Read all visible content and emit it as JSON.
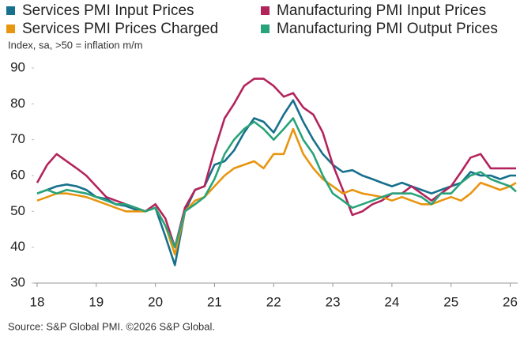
{
  "chart_data": {
    "type": "line",
    "subtitle": "Index, sa, >50 = inflation m/m",
    "source": "Source: S&P Global PMI. ©2026 S&P Global.",
    "x": [
      18,
      18.17,
      18.33,
      18.5,
      18.67,
      18.83,
      19,
      19.17,
      19.33,
      19.5,
      19.67,
      19.83,
      20,
      20.17,
      20.33,
      20.5,
      20.67,
      20.83,
      21,
      21.17,
      21.33,
      21.5,
      21.67,
      21.83,
      22,
      22.17,
      22.33,
      22.5,
      22.67,
      22.83,
      23,
      23.17,
      23.33,
      23.5,
      23.67,
      23.83,
      24,
      24.17,
      24.33,
      24.5,
      24.67,
      24.83,
      25,
      25.17,
      25.33,
      25.5,
      25.67,
      25.83,
      26,
      26.1
    ],
    "series": [
      {
        "name": "Services PMI Input Prices",
        "color": "#17708c",
        "values": [
          55,
          56,
          57,
          57.5,
          57,
          56,
          54,
          53.5,
          52,
          51.5,
          50.5,
          50,
          51,
          43,
          35,
          50,
          56,
          57,
          63,
          64,
          67,
          72,
          76,
          75,
          72,
          77,
          81,
          75,
          70,
          66,
          63,
          61,
          61.5,
          60,
          59,
          58,
          57,
          58,
          57,
          56,
          55,
          56,
          57,
          58,
          61,
          60,
          60,
          59,
          60,
          60
        ]
      },
      {
        "name": "Manufacturing PMI Input Prices",
        "color": "#b3245c",
        "values": [
          58,
          63,
          66,
          64,
          62,
          60,
          57,
          54,
          53,
          52,
          51,
          50,
          52,
          48,
          40,
          51,
          56,
          57,
          67,
          76,
          80,
          85,
          87,
          87,
          85,
          82,
          83,
          79,
          77,
          72,
          63,
          56,
          49,
          50,
          52,
          53,
          55,
          55,
          57,
          55,
          53,
          55,
          57,
          61,
          65,
          66,
          62,
          62,
          62,
          62
        ]
      },
      {
        "name": "Services PMI Prices Charged",
        "color": "#e8950f",
        "values": [
          53,
          54,
          55,
          55,
          54.5,
          54,
          53,
          52,
          51,
          50,
          50,
          50,
          51,
          46,
          38,
          50,
          53,
          54,
          57,
          60,
          62,
          63,
          64,
          62,
          66,
          66,
          73,
          66,
          62,
          59,
          57,
          55,
          56,
          55,
          54.5,
          54,
          53,
          54,
          53,
          52,
          52,
          53,
          54,
          53,
          55,
          58,
          57,
          56,
          57,
          58
        ]
      },
      {
        "name": "Manufacturing PMI Output Prices",
        "color": "#29a37a",
        "values": [
          55,
          56,
          55,
          56,
          55.5,
          55,
          54,
          53,
          52,
          52,
          51,
          50,
          51,
          46,
          40,
          50,
          52,
          54,
          59,
          66,
          70,
          73,
          75,
          73,
          70,
          73,
          76,
          70,
          66,
          60,
          55,
          53,
          51,
          52,
          53,
          54,
          55,
          55,
          55,
          54,
          52,
          55,
          55,
          58,
          60,
          61,
          59,
          58,
          57,
          55.5
        ]
      }
    ],
    "xlim": [
      18,
      26.1
    ],
    "xticks": [
      18,
      19,
      20,
      21,
      22,
      23,
      24,
      25,
      26
    ],
    "ylim": [
      30,
      90
    ],
    "yticks": [
      30,
      40,
      50,
      60,
      70,
      80,
      90
    ]
  }
}
